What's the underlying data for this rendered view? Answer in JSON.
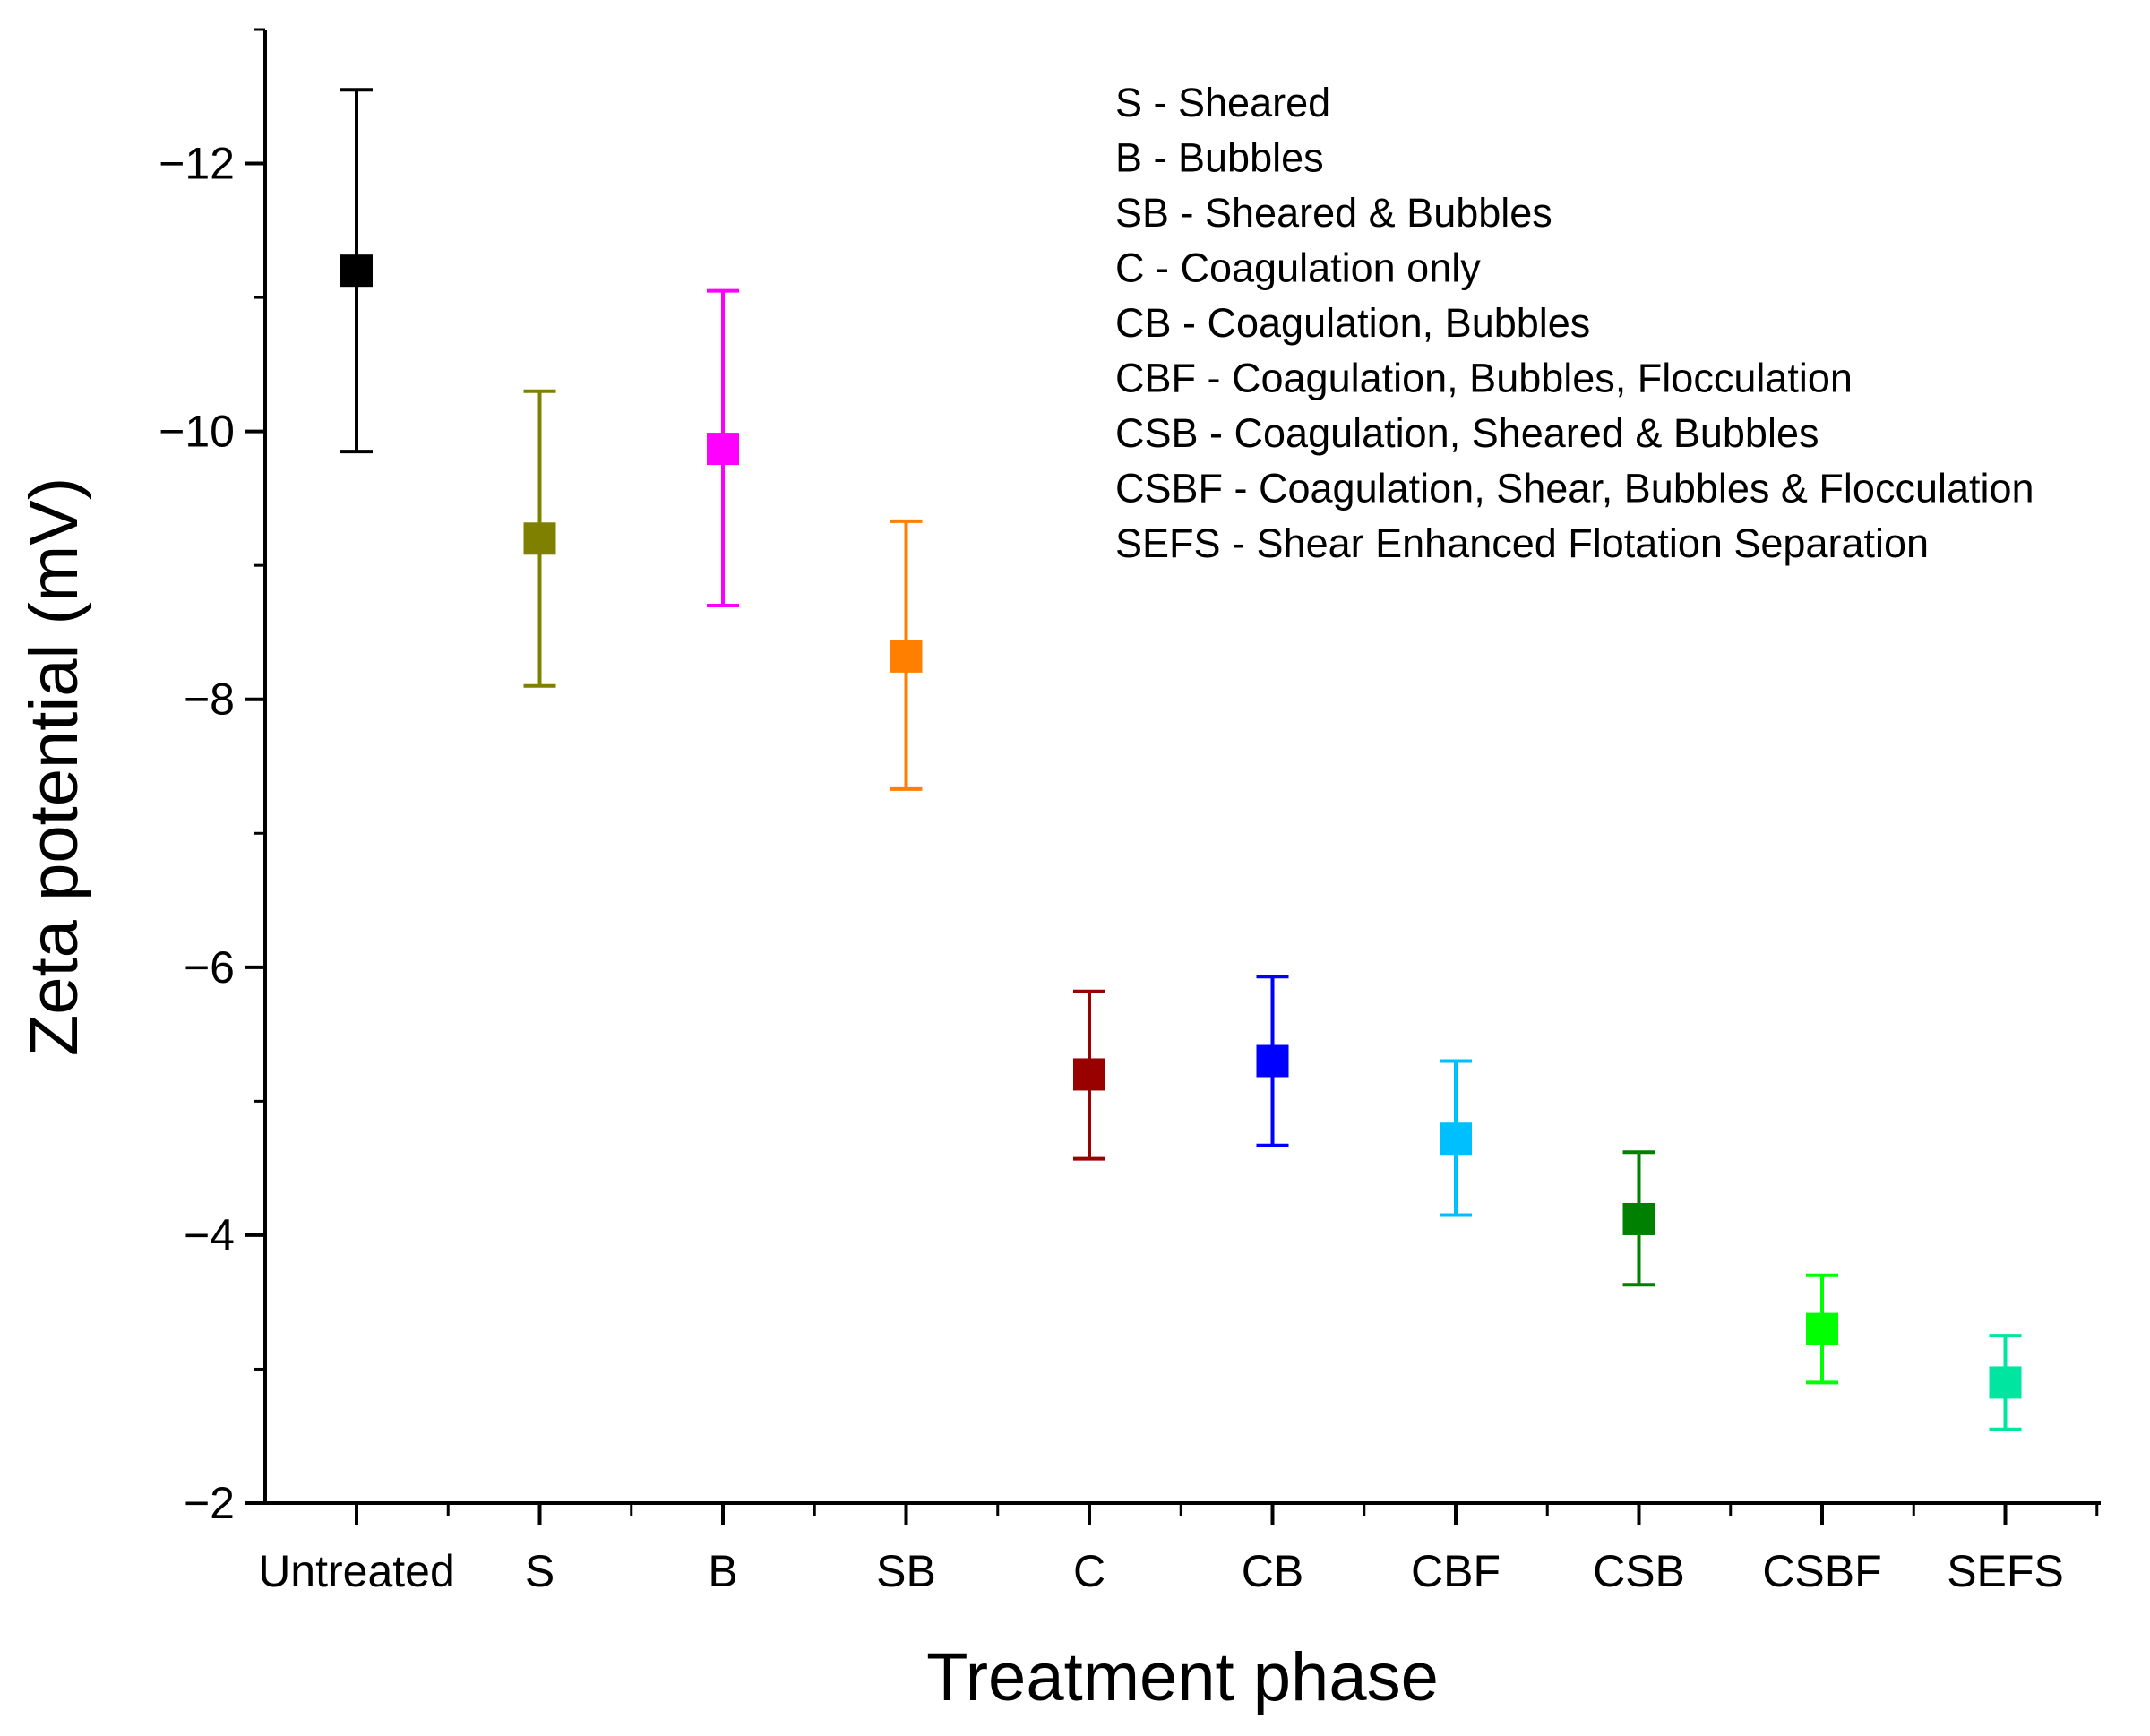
{
  "chart_data": {
    "type": "scatter",
    "title": "",
    "xlabel": "Treatment phase",
    "ylabel": "Zeta potential (mV)",
    "ylim": [
      -2,
      -13
    ],
    "yticks": [
      -12,
      -10,
      -8,
      -6,
      -4,
      -2
    ],
    "ytick_labels": [
      "−12",
      "−10",
      "−8",
      "−6",
      "−4",
      "−2"
    ],
    "categories": [
      "Untreated",
      "S",
      "B",
      "SB",
      "C",
      "CB",
      "CBF",
      "CSB",
      "CSBF",
      "SEFS"
    ],
    "values": [
      -11.2,
      -9.2,
      -9.87,
      -8.32,
      -5.2,
      -5.3,
      -4.72,
      -4.12,
      -3.3,
      -2.9
    ],
    "error_upper": [
      -12.55,
      -10.3,
      -11.05,
      -9.33,
      -5.82,
      -5.93,
      -5.3,
      -4.62,
      -3.7,
      -3.25
    ],
    "error_lower": [
      -9.85,
      -8.1,
      -8.7,
      -7.33,
      -4.57,
      -4.67,
      -4.15,
      -3.63,
      -2.9,
      -2.55
    ],
    "colors": [
      "#000000",
      "#808000",
      "#ff00ff",
      "#ff7f00",
      "#990000",
      "#0000ff",
      "#00bfff",
      "#008000",
      "#00ff00",
      "#00e5a0"
    ],
    "legend": {
      "placement": "top-right",
      "entries": [
        "S - Sheared",
        "B - Bubbles",
        "SB - Sheared & Bubbles",
        "C - Coagulation only",
        "CB - Coagulation, Bubbles",
        "CBF - Coagulation, Bubbles, Flocculation",
        "CSB - Coagulation, Sheared & Bubbles",
        "CSBF - Coagulation, Shear, Bubbles & Flocculation",
        "SEFS - Shear Enhanced Flotation Separation"
      ]
    },
    "grid": false
  }
}
